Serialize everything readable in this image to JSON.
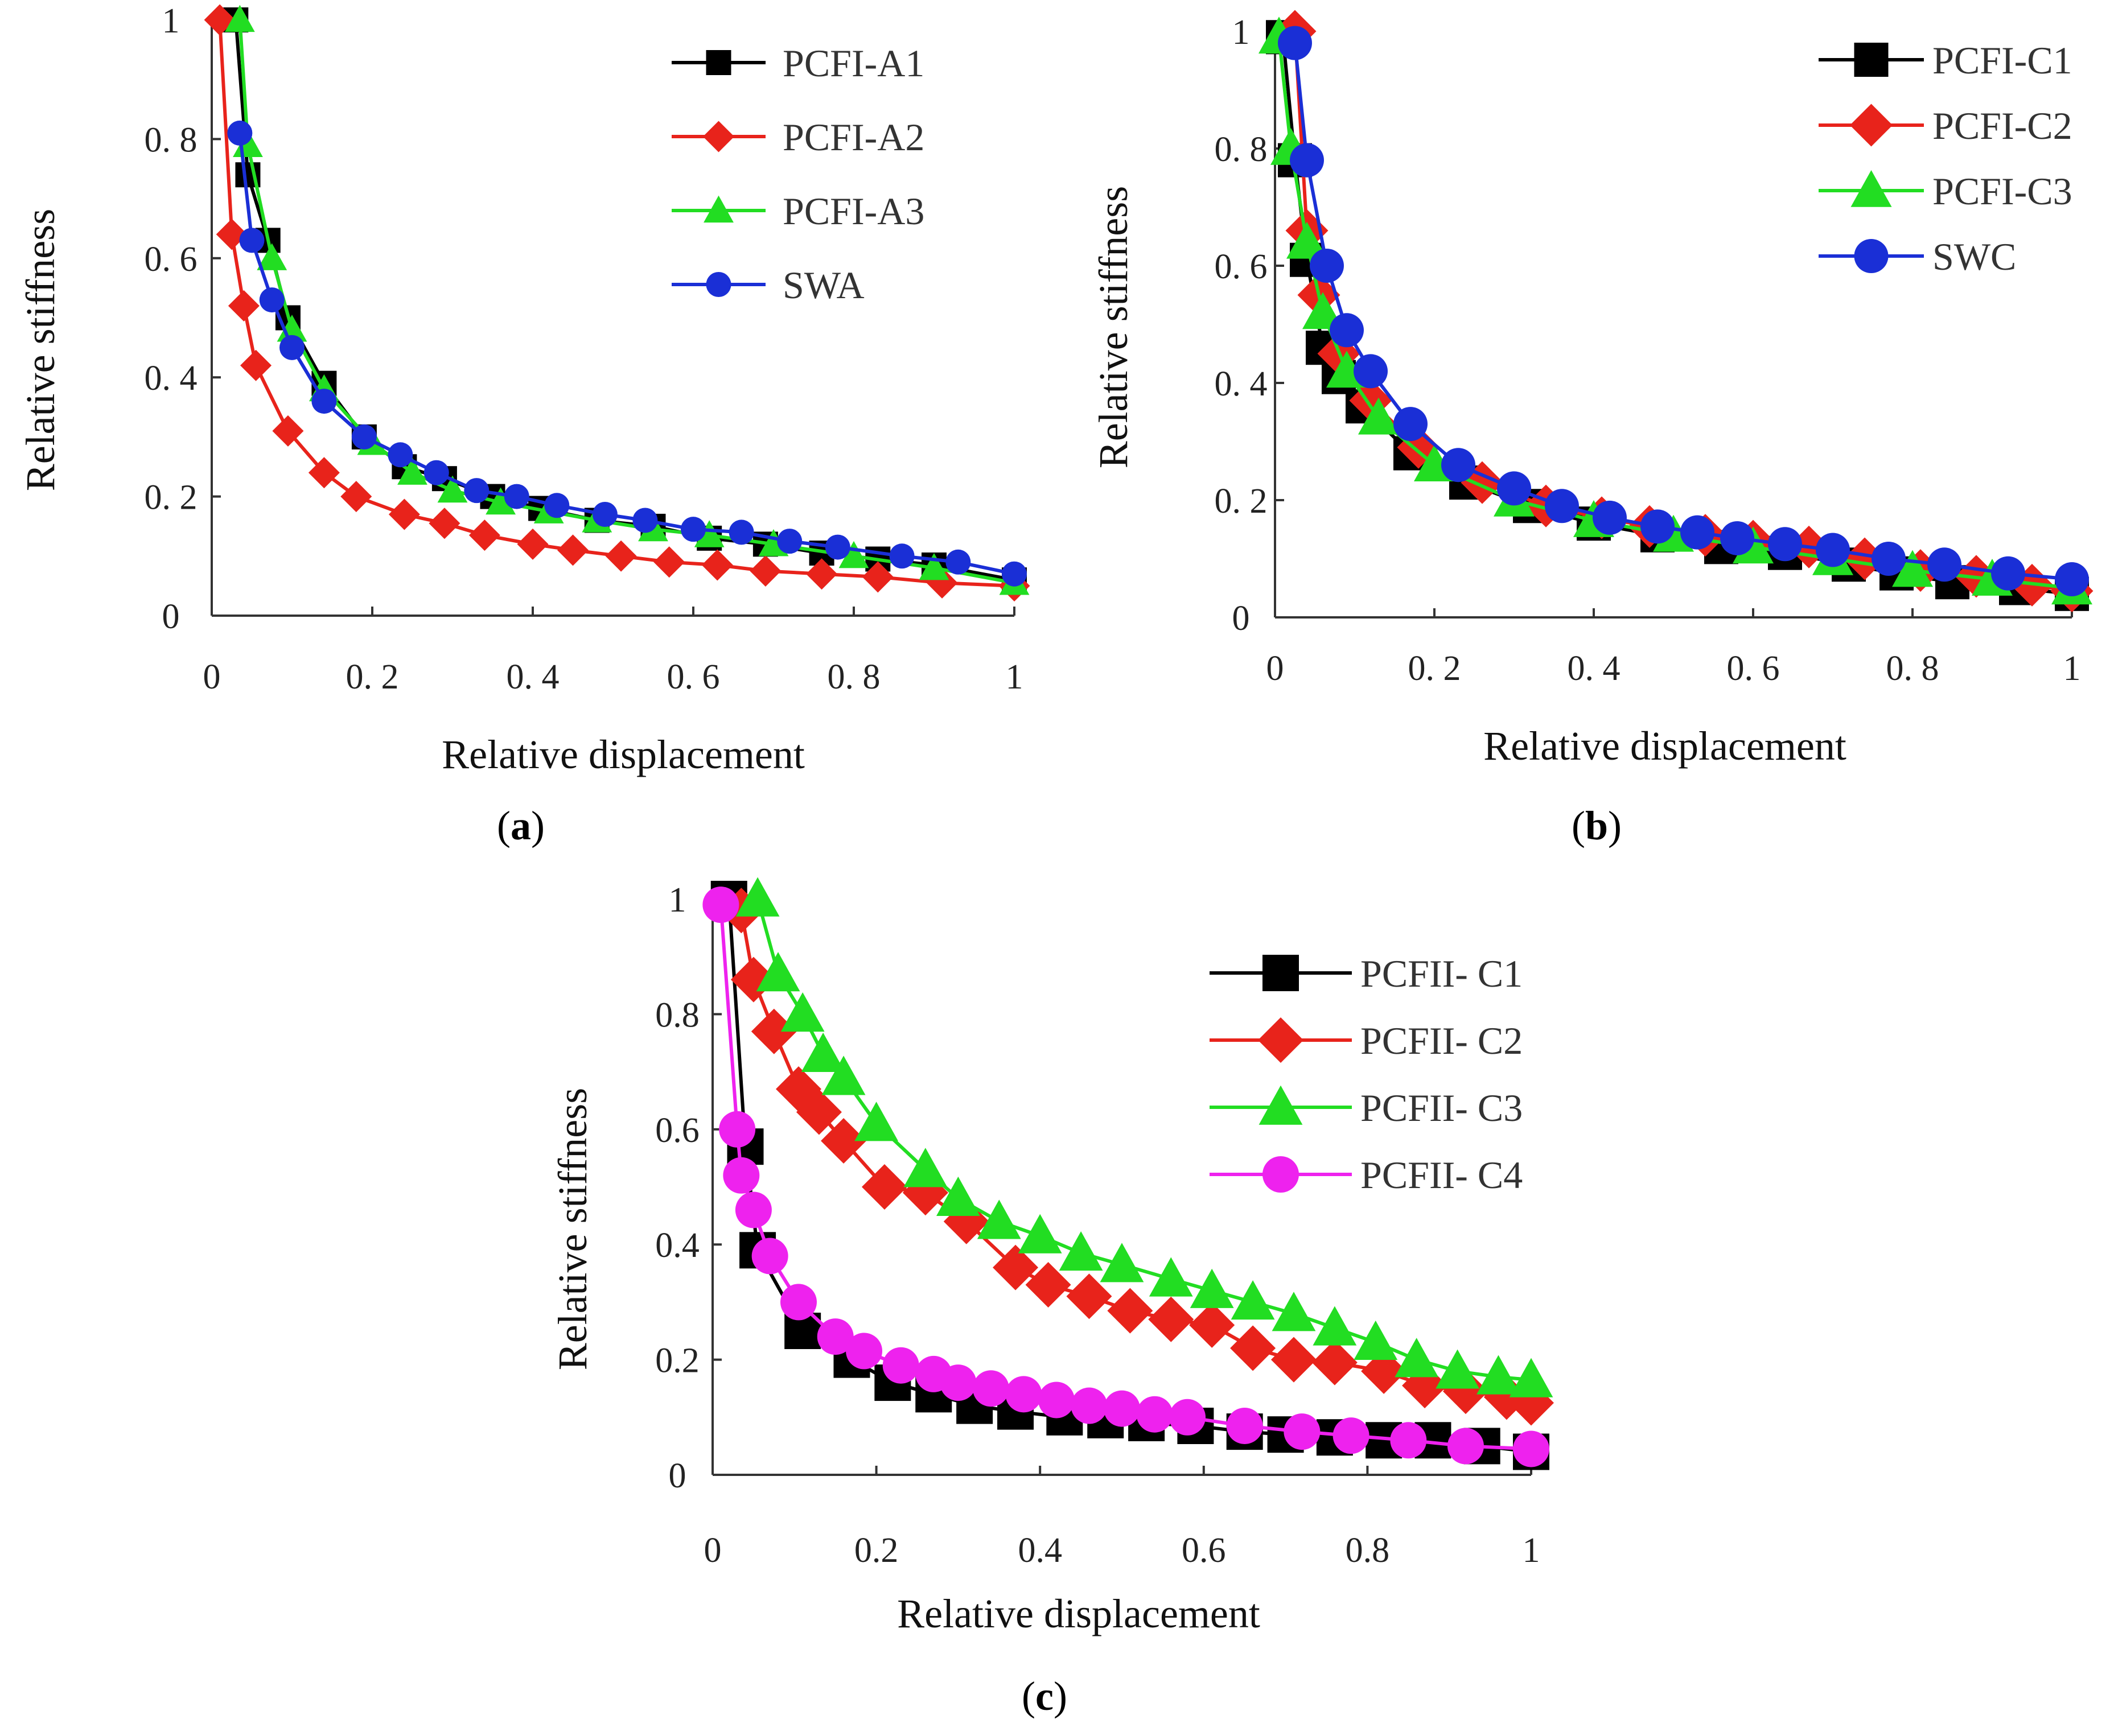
{
  "chart_data": [
    {
      "id": "a",
      "caption_letter": "a",
      "type": "line",
      "xlabel": "Relative displacement",
      "ylabel": "Relative stiffness",
      "xlim": [
        0,
        1
      ],
      "ylim": [
        0,
        1
      ],
      "xticks": [
        "0",
        "0. 2",
        "0. 4",
        "0. 6",
        "0. 8",
        "1"
      ],
      "yticks": [
        "0",
        "0. 2",
        "0. 4",
        "0. 6",
        "0. 8",
        "1"
      ],
      "legend_position": "top-right",
      "series": [
        {
          "name": "PCFI-A1",
          "color": "#000000",
          "marker": "square",
          "x": [
            0.03,
            0.045,
            0.07,
            0.095,
            0.14,
            0.19,
            0.24,
            0.29,
            0.35,
            0.41,
            0.48,
            0.55,
            0.62,
            0.69,
            0.76,
            0.83,
            0.9,
            1.0
          ],
          "y": [
            1.0,
            0.74,
            0.63,
            0.5,
            0.39,
            0.3,
            0.25,
            0.23,
            0.2,
            0.18,
            0.16,
            0.15,
            0.13,
            0.12,
            0.105,
            0.095,
            0.085,
            0.06
          ]
        },
        {
          "name": "PCFI-A2",
          "color": "#e8231b",
          "marker": "diamond",
          "x": [
            0.01,
            0.025,
            0.04,
            0.055,
            0.095,
            0.14,
            0.18,
            0.24,
            0.29,
            0.34,
            0.4,
            0.45,
            0.51,
            0.57,
            0.63,
            0.69,
            0.76,
            0.83,
            0.91,
            1.0
          ],
          "y": [
            1.0,
            0.64,
            0.52,
            0.42,
            0.31,
            0.24,
            0.2,
            0.17,
            0.155,
            0.135,
            0.12,
            0.11,
            0.1,
            0.09,
            0.085,
            0.075,
            0.07,
            0.065,
            0.055,
            0.05
          ]
        },
        {
          "name": "PCFI-A3",
          "color": "#22dd22",
          "marker": "triangle",
          "x": [
            0.035,
            0.045,
            0.075,
            0.1,
            0.14,
            0.2,
            0.25,
            0.3,
            0.36,
            0.42,
            0.48,
            0.55,
            0.62,
            0.7,
            0.8,
            0.9,
            1.0
          ],
          "y": [
            1.0,
            0.79,
            0.6,
            0.48,
            0.38,
            0.29,
            0.24,
            0.21,
            0.19,
            0.175,
            0.16,
            0.145,
            0.135,
            0.12,
            0.1,
            0.08,
            0.055
          ]
        },
        {
          "name": "SWA",
          "color": "#1a2fd6",
          "marker": "circle",
          "x": [
            0.035,
            0.05,
            0.075,
            0.1,
            0.14,
            0.19,
            0.235,
            0.28,
            0.33,
            0.38,
            0.43,
            0.49,
            0.54,
            0.6,
            0.66,
            0.72,
            0.78,
            0.86,
            0.93,
            1.0
          ],
          "y": [
            0.81,
            0.63,
            0.53,
            0.45,
            0.36,
            0.3,
            0.27,
            0.24,
            0.21,
            0.2,
            0.185,
            0.17,
            0.16,
            0.145,
            0.14,
            0.125,
            0.115,
            0.1,
            0.09,
            0.07
          ]
        }
      ]
    },
    {
      "id": "b",
      "caption_letter": "b",
      "type": "line",
      "xlabel": "Relative displacement",
      "ylabel": "Relative stiffness",
      "xlim": [
        0,
        1
      ],
      "ylim": [
        0,
        1
      ],
      "xticks": [
        "0",
        "0. 2",
        "0. 4",
        "0. 6",
        "0. 8",
        "1"
      ],
      "yticks": [
        "0",
        "0. 2",
        "0. 4",
        "0. 6",
        "0. 8",
        "1"
      ],
      "legend_position": "top-right",
      "series": [
        {
          "name": "PCFI-C1",
          "color": "#000000",
          "marker": "square",
          "x": [
            0.01,
            0.025,
            0.04,
            0.06,
            0.08,
            0.11,
            0.17,
            0.24,
            0.32,
            0.4,
            0.48,
            0.56,
            0.64,
            0.72,
            0.78,
            0.85,
            0.93,
            1.0
          ],
          "y": [
            0.99,
            0.78,
            0.61,
            0.46,
            0.41,
            0.36,
            0.28,
            0.23,
            0.19,
            0.16,
            0.14,
            0.12,
            0.11,
            0.09,
            0.075,
            0.06,
            0.05,
            0.04
          ]
        },
        {
          "name": "PCFI-C2",
          "color": "#e8231b",
          "marker": "diamond",
          "x": [
            0.025,
            0.04,
            0.055,
            0.08,
            0.12,
            0.18,
            0.26,
            0.34,
            0.41,
            0.47,
            0.54,
            0.6,
            0.67,
            0.74,
            0.81,
            0.88,
            0.95,
            1.0
          ],
          "y": [
            1.0,
            0.66,
            0.55,
            0.45,
            0.37,
            0.29,
            0.23,
            0.19,
            0.17,
            0.155,
            0.14,
            0.13,
            0.12,
            0.1,
            0.08,
            0.07,
            0.055,
            0.045
          ]
        },
        {
          "name": "PCFI-C3",
          "color": "#22dd22",
          "marker": "triangle",
          "x": [
            0.005,
            0.02,
            0.04,
            0.06,
            0.09,
            0.13,
            0.2,
            0.3,
            0.4,
            0.5,
            0.6,
            0.7,
            0.8,
            0.9,
            1.0
          ],
          "y": [
            0.99,
            0.8,
            0.64,
            0.52,
            0.42,
            0.34,
            0.26,
            0.2,
            0.165,
            0.14,
            0.12,
            0.1,
            0.08,
            0.065,
            0.05
          ]
        },
        {
          "name": "SWC",
          "color": "#1a2fd6",
          "marker": "circle",
          "x": [
            0.025,
            0.04,
            0.065,
            0.09,
            0.12,
            0.17,
            0.23,
            0.3,
            0.36,
            0.42,
            0.48,
            0.53,
            0.58,
            0.64,
            0.7,
            0.77,
            0.84,
            0.92,
            1.0
          ],
          "y": [
            0.98,
            0.78,
            0.6,
            0.49,
            0.42,
            0.33,
            0.26,
            0.22,
            0.19,
            0.17,
            0.155,
            0.145,
            0.135,
            0.125,
            0.115,
            0.1,
            0.09,
            0.075,
            0.065
          ]
        }
      ]
    },
    {
      "id": "c",
      "caption_letter": "c",
      "type": "line",
      "xlabel": "Relative displacement",
      "ylabel": "Relative stiffness",
      "xlim": [
        0,
        1
      ],
      "ylim": [
        0,
        1
      ],
      "xticks": [
        "0",
        "0.2",
        "0.4",
        "0.6",
        "0.8",
        "1"
      ],
      "yticks": [
        "0",
        "0.2",
        "0.4",
        "0.6",
        "0.8",
        "1"
      ],
      "legend_position": "top-right",
      "series": [
        {
          "name": "PCFII- C1",
          "color": "#000000",
          "marker": "square",
          "x": [
            0.02,
            0.04,
            0.055,
            0.11,
            0.17,
            0.22,
            0.27,
            0.32,
            0.37,
            0.43,
            0.48,
            0.53,
            0.59,
            0.65,
            0.7,
            0.76,
            0.82,
            0.88,
            0.94,
            1.0
          ],
          "y": [
            1.0,
            0.57,
            0.39,
            0.25,
            0.2,
            0.16,
            0.14,
            0.12,
            0.11,
            0.1,
            0.095,
            0.09,
            0.085,
            0.075,
            0.07,
            0.065,
            0.06,
            0.06,
            0.05,
            0.04
          ]
        },
        {
          "name": "PCFII- C2",
          "color": "#e8231b",
          "marker": "diamond",
          "x": [
            0.035,
            0.05,
            0.075,
            0.105,
            0.13,
            0.16,
            0.21,
            0.26,
            0.31,
            0.37,
            0.41,
            0.46,
            0.51,
            0.56,
            0.61,
            0.66,
            0.71,
            0.76,
            0.82,
            0.87,
            0.92,
            0.97,
            1.0
          ],
          "y": [
            0.98,
            0.86,
            0.77,
            0.67,
            0.63,
            0.58,
            0.5,
            0.49,
            0.44,
            0.36,
            0.33,
            0.31,
            0.285,
            0.27,
            0.26,
            0.22,
            0.2,
            0.195,
            0.18,
            0.155,
            0.145,
            0.135,
            0.125
          ]
        },
        {
          "name": "PCFII- C3",
          "color": "#22dd22",
          "marker": "triangle",
          "x": [
            0.055,
            0.08,
            0.11,
            0.135,
            0.16,
            0.2,
            0.26,
            0.3,
            0.35,
            0.4,
            0.45,
            0.5,
            0.56,
            0.61,
            0.66,
            0.71,
            0.76,
            0.81,
            0.86,
            0.91,
            0.96,
            1.0
          ],
          "y": [
            1.0,
            0.87,
            0.8,
            0.73,
            0.69,
            0.61,
            0.53,
            0.48,
            0.44,
            0.415,
            0.385,
            0.365,
            0.34,
            0.32,
            0.3,
            0.28,
            0.255,
            0.23,
            0.2,
            0.18,
            0.17,
            0.165
          ]
        },
        {
          "name": "PCFII- C4",
          "color": "#ee22ee",
          "marker": "circle",
          "x": [
            0.01,
            0.03,
            0.035,
            0.05,
            0.07,
            0.105,
            0.15,
            0.185,
            0.23,
            0.27,
            0.3,
            0.34,
            0.38,
            0.42,
            0.46,
            0.5,
            0.54,
            0.58,
            0.65,
            0.72,
            0.78,
            0.85,
            0.92,
            1.0
          ],
          "y": [
            0.99,
            0.6,
            0.52,
            0.46,
            0.38,
            0.3,
            0.24,
            0.215,
            0.19,
            0.175,
            0.16,
            0.15,
            0.14,
            0.13,
            0.12,
            0.115,
            0.105,
            0.1,
            0.085,
            0.075,
            0.068,
            0.06,
            0.05,
            0.045
          ]
        }
      ]
    }
  ]
}
